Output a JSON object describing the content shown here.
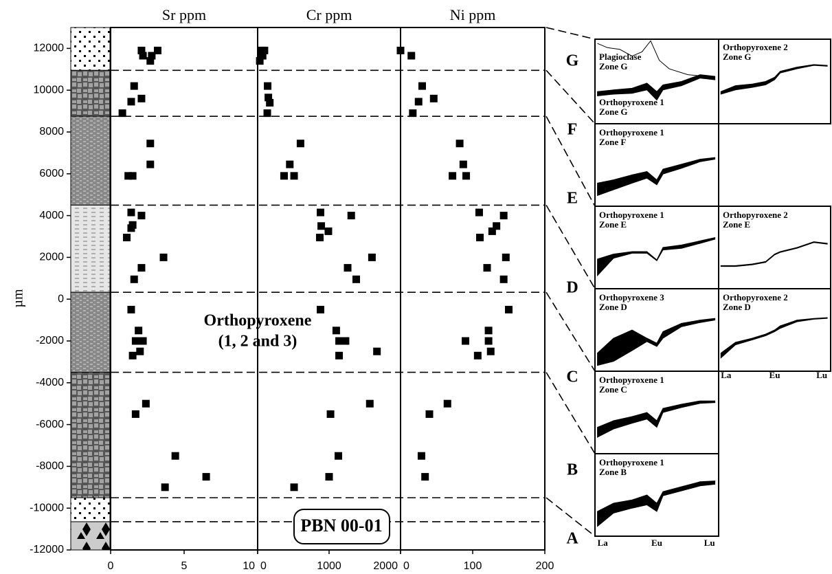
{
  "chart_data": [
    {
      "type": "scatter",
      "title": "Sr ppm",
      "ylabel": "µm",
      "ylim": [
        -12000,
        13000
      ],
      "yticks": [
        -12000,
        -10000,
        -8000,
        -6000,
        -4000,
        -2000,
        0,
        2000,
        4000,
        6000,
        8000,
        10000,
        12000
      ],
      "xlim": [
        0,
        10
      ],
      "xticks": [
        0,
        5,
        10
      ],
      "color": "#000000",
      "x": [
        2.1,
        2.2,
        2.8,
        3.2,
        2.7,
        1.6,
        1.4,
        2.1,
        0.8,
        2.7,
        2.7,
        1.2,
        1.5,
        1.4,
        2.1,
        1.5,
        1.4,
        1.1,
        3.6,
        2.1,
        1.6,
        1.4,
        1.9,
        1.7,
        2.2,
        2.0,
        1.5,
        2.4,
        1.7,
        4.4,
        6.5,
        3.7
      ],
      "y": [
        11900,
        11650,
        11650,
        11900,
        11400,
        10200,
        9450,
        9600,
        8900,
        7450,
        6450,
        5900,
        5900,
        4150,
        4000,
        3550,
        3400,
        2950,
        2000,
        1500,
        950,
        -500,
        -1500,
        -2000,
        -2000,
        -2500,
        -2700,
        -5000,
        -5500,
        -7500,
        -8500,
        -9000
      ],
      "zone_boundaries": [
        10950,
        8750,
        4500,
        330,
        -3500,
        -9500,
        -10650
      ],
      "zones": [
        "G",
        "F",
        "E",
        "D",
        "C",
        "B",
        "A"
      ],
      "annotations": [
        "Orthopyroxene",
        "(1, 2 and 3)",
        "PBN 00-01"
      ]
    },
    {
      "type": "scatter",
      "title": "Cr ppm",
      "xlim": [
        0,
        2000
      ],
      "xticks": [
        0,
        1000,
        2000
      ],
      "color": "#000000",
      "x": [
        50,
        70,
        30,
        95,
        60,
        140,
        150,
        170,
        135,
        600,
        450,
        370,
        510,
        880,
        1310,
        890,
        990,
        870,
        1600,
        1260,
        1380,
        880,
        1100,
        1140,
        1230,
        1670,
        1140,
        1570,
        1020,
        1130,
        1000,
        510
      ],
      "y": [
        11900,
        11650,
        11400,
        11900,
        11650,
        10200,
        9650,
        9400,
        8900,
        7450,
        6450,
        5900,
        5900,
        4150,
        4000,
        3500,
        3250,
        2950,
        2000,
        1500,
        950,
        -500,
        -1500,
        -2000,
        -2000,
        -2500,
        -2700,
        -5000,
        -5500,
        -7500,
        -8500,
        -9000
      ]
    },
    {
      "type": "scatter",
      "title": "Ni ppm",
      "xlim": [
        0,
        200
      ],
      "xticks": [
        0,
        100,
        200
      ],
      "color": "#000000",
      "x": [
        0,
        15,
        30,
        25,
        46,
        17,
        82,
        87,
        72,
        91,
        109,
        143,
        133,
        127,
        110,
        146,
        120,
        143,
        150,
        122,
        122,
        90,
        125,
        107,
        65,
        40,
        29,
        34
      ],
      "y": [
        11900,
        11650,
        10200,
        9450,
        9600,
        8900,
        7450,
        6450,
        5900,
        5900,
        4150,
        4000,
        3500,
        3250,
        2950,
        2000,
        1500,
        950,
        -500,
        -1500,
        -2000,
        -2000,
        -2500,
        -2700,
        -5000,
        -5500,
        -7500,
        -8500
      ]
    }
  ],
  "ree_axis": [
    "La",
    "Eu",
    "Lu"
  ],
  "ree_panels": [
    {
      "labels": [
        [
          "Plagioclase",
          "Zone G"
        ],
        [
          "Orthopyroxene 1",
          "Zone G"
        ]
      ]
    },
    {
      "labels": [
        [
          "Orthopyroxene 2",
          "Zone G"
        ]
      ]
    },
    {
      "labels": [
        [
          "Orthopyroxene 1",
          "Zone F"
        ]
      ]
    },
    {
      "labels": [
        [
          "Orthopyroxene 1",
          "Zone E"
        ]
      ]
    },
    {
      "labels": [
        [
          "Orthopyroxene 2",
          "Zone E"
        ]
      ]
    },
    {
      "labels": [
        [
          "Orthopyroxene 3",
          "Zone D"
        ]
      ]
    },
    {
      "labels": [
        [
          "Orthopyroxene 2",
          "Zone D"
        ]
      ]
    },
    {
      "labels": [
        [
          "Orthopyroxene 1",
          "Zone C"
        ]
      ]
    },
    {
      "labels": [
        [
          "Orthopyroxene 1",
          "Zone B"
        ]
      ]
    }
  ]
}
